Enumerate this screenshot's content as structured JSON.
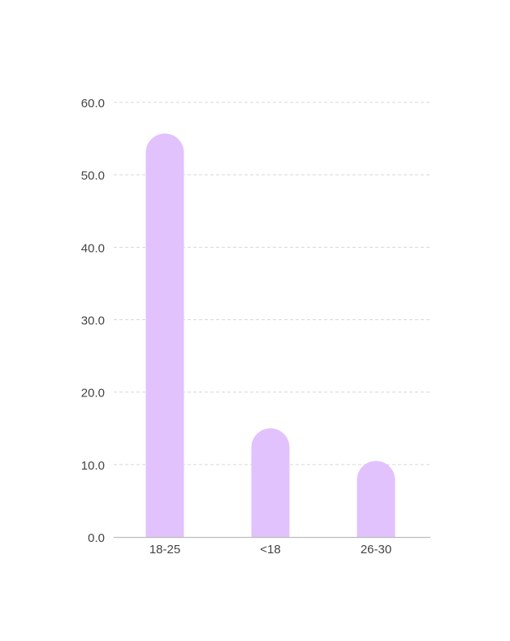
{
  "chart_data": {
    "type": "bar",
    "categories": [
      "18-25",
      "<18",
      "26-30"
    ],
    "values": [
      55.7,
      15.0,
      10.5
    ],
    "yticks": [
      "0.0",
      "10.0",
      "20.0",
      "30.0",
      "40.0",
      "50.0",
      "60.0"
    ],
    "ytick_values": [
      0,
      10,
      20,
      30,
      40,
      50,
      60
    ],
    "ylim": [
      0,
      60
    ],
    "grid": true,
    "legend": "none",
    "colors": {
      "bar": "#e2c2fd",
      "grid": "#d8d8d8",
      "axis": "#bdbdbd",
      "text": "#444444"
    }
  }
}
